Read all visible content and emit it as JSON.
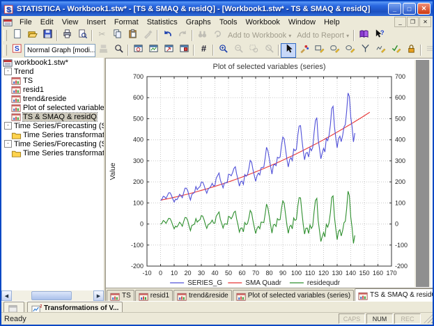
{
  "window": {
    "title": "STATISTICA - Workbook1.stw* - [TS & SMAQ & residQ] - [Workbook1.stw* - TS & SMAQ & residQ]",
    "controls": [
      {
        "name": "minimize-button",
        "glyph": "_"
      },
      {
        "name": "maximize-button",
        "glyph": "□"
      },
      {
        "name": "close-button",
        "glyph": "✕",
        "color": "#cc3810"
      }
    ],
    "mdi_controls": [
      {
        "name": "mdi-minimize-button",
        "glyph": "_"
      },
      {
        "name": "mdi-restore-button",
        "glyph": "❐"
      },
      {
        "name": "mdi-close-button",
        "glyph": "✕"
      }
    ]
  },
  "menubar": {
    "items": [
      "File",
      "Edit",
      "View",
      "Insert",
      "Format",
      "Statistics",
      "Graphs",
      "Tools",
      "Workbook",
      "Window",
      "Help"
    ]
  },
  "toolbar1": {
    "items": [
      {
        "name": "new-button",
        "icon": "new-page-icon"
      },
      {
        "name": "open-button",
        "icon": "open-folder-icon"
      },
      {
        "name": "save-button",
        "icon": "save-icon"
      },
      {
        "sep": true
      },
      {
        "name": "print-button",
        "icon": "printer-icon"
      },
      {
        "name": "print-preview-button",
        "icon": "print-preview-icon"
      },
      {
        "sep": true
      },
      {
        "name": "cut-button",
        "icon": "scissors-icon",
        "disabled": true
      },
      {
        "name": "copy-button",
        "icon": "copy-icon"
      },
      {
        "name": "paste-button",
        "icon": "paste-icon"
      },
      {
        "name": "format-painter-button",
        "icon": "paintbrush-icon",
        "disabled": true
      },
      {
        "sep": true
      },
      {
        "name": "undo-button",
        "icon": "undo-icon"
      },
      {
        "name": "redo-button",
        "icon": "redo-icon",
        "disabled": true
      },
      {
        "sep": true
      },
      {
        "name": "find-button",
        "icon": "binoculars-icon",
        "disabled": true
      },
      {
        "name": "find-next-button",
        "icon": "find-next-icon",
        "disabled": true
      },
      {
        "name": "add-to-workbook-button",
        "label": "Add to Workbook",
        "dropdown": true,
        "disabled": true
      },
      {
        "name": "add-to-report-button",
        "label": "Add to Report",
        "dropdown": true,
        "disabled": true
      },
      {
        "sep": true
      },
      {
        "name": "help-book-button",
        "icon": "book-icon"
      },
      {
        "name": "context-help-button",
        "icon": "help-pointer-icon"
      }
    ]
  },
  "toolbar2": {
    "graph_type_value": "Normal Graph [modi...",
    "items": [
      {
        "name": "statistica-style-button",
        "icon": "s-badge-icon"
      },
      {
        "name": "graph-type-select",
        "select": true
      },
      {
        "name": "apply-style-button",
        "icon": "stamp-icon",
        "disabled": true
      },
      {
        "name": "zoom-custom-button",
        "icon": "magnifier-icon"
      },
      {
        "sep": true
      },
      {
        "name": "fit-window-button",
        "icon": "window-zoom-icon"
      },
      {
        "name": "graph-options-button",
        "icon": "window-graph-icon"
      },
      {
        "name": "graph-layout-button",
        "icon": "window-arrow-icon"
      },
      {
        "name": "graph-data-editor-button",
        "icon": "window-red-icon"
      },
      {
        "sep": true
      },
      {
        "name": "gridlines-button",
        "icon": "grid-icon"
      },
      {
        "sep": true
      },
      {
        "name": "zoom-in-button",
        "icon": "zoom-in-icon"
      },
      {
        "name": "zoom-out-button",
        "icon": "zoom-out-icon",
        "disabled": true
      },
      {
        "name": "zoom-selection-button",
        "icon": "zoom-selection-icon",
        "disabled": true
      },
      {
        "name": "zoom-reset-button",
        "icon": "zoom-reset-icon",
        "disabled": true
      },
      {
        "sep": true
      },
      {
        "name": "pointer-tool-button",
        "icon": "pointer-icon",
        "active": true
      },
      {
        "name": "brushing-tool-button",
        "icon": "brush-color-icon"
      },
      {
        "name": "draw-rect-button",
        "icon": "rect-pencil-icon"
      },
      {
        "name": "draw-rounded-button",
        "icon": "round-pencil-icon"
      },
      {
        "name": "draw-ellipse-button",
        "icon": "ellipse-pencil-icon"
      },
      {
        "name": "point-label-button",
        "icon": "caliper-icon"
      },
      {
        "name": "draw-freeform-button",
        "icon": "free-pencil-icon"
      },
      {
        "name": "draw-custom-button",
        "icon": "check-pencil-icon"
      },
      {
        "name": "lock-tool-button",
        "icon": "lock-icon"
      },
      {
        "sep": true
      },
      {
        "name": "line-style-button",
        "icon": "gray-lines-icon",
        "disabled": true
      },
      {
        "name": "fill-pattern-button",
        "icon": "gray-pattern-icon",
        "disabled": true
      },
      {
        "sep": true
      },
      {
        "name": "bring-forward-button",
        "icon": "bring-forward-icon",
        "disabled": true
      },
      {
        "name": "send-backward-button",
        "icon": "send-backward-icon",
        "disabled": true
      },
      {
        "sep": true
      },
      {
        "name": "font-increase-button",
        "icon": "font-up-icon"
      },
      {
        "name": "font-decrease-button",
        "icon": "font-down-icon"
      }
    ]
  },
  "tree": {
    "items": [
      {
        "label": "workbook1.stw*",
        "icon": "workbook-icon",
        "indent": 0
      },
      {
        "label": "Trend",
        "expander": true,
        "indent": 0
      },
      {
        "label": "TS",
        "icon": "graph-doc-icon",
        "indent": 1
      },
      {
        "label": "resid1",
        "icon": "graph-doc-icon",
        "indent": 1
      },
      {
        "label": "trend&reside",
        "icon": "graph-doc-icon",
        "indent": 1
      },
      {
        "label": "Plot of selected variables (series)",
        "icon": "graph-doc-icon",
        "indent": 1
      },
      {
        "label": "TS & SMAQ & residQ",
        "icon": "graph-doc-icon",
        "indent": 1,
        "selected": true
      },
      {
        "label": "Time Series/Forecasting (Series_Gmy.sta)",
        "expander": true,
        "indent": 0
      },
      {
        "label": "Time Series transformations dialog",
        "icon": "folder-icon",
        "indent": 1
      },
      {
        "label": "Time Series/Forecasting (Series_Gmy.sta)",
        "expander": true,
        "indent": 0
      },
      {
        "label": "Time Series transformations dialog",
        "icon": "folder-icon",
        "indent": 1
      }
    ]
  },
  "tabs": {
    "items": [
      {
        "label": "TS"
      },
      {
        "label": "resid1"
      },
      {
        "label": "trend&reside"
      },
      {
        "label": "Plot of selected variables (series)"
      },
      {
        "label": "TS & SMAQ & residQ",
        "active": true
      }
    ]
  },
  "taskbar": {
    "buttons": [
      {
        "name": "minimized-output-button",
        "icon": "gray-window-icon",
        "label": ""
      },
      {
        "name": "transformations-dialog-button",
        "icon": "task-chart-icon",
        "label": "Transformations of V..."
      }
    ]
  },
  "statusbar": {
    "ready": "Ready",
    "indicators": [
      {
        "label": "CAPS",
        "active": false
      },
      {
        "label": "NUM",
        "active": true
      },
      {
        "label": "REC",
        "active": false
      }
    ]
  },
  "chart_data": {
    "type": "line",
    "title": "Plot of selected variables (series)",
    "xlabel": "",
    "ylabel": "Value",
    "xlim": [
      -10,
      170
    ],
    "ylim": [
      -200,
      700
    ],
    "xstep": 10,
    "ystep": 100,
    "grid": true,
    "legend_position": "bottom",
    "series": [
      {
        "name": "SERIES_G",
        "color": "#5050d8",
        "x_start": 0,
        "values": [
          112,
          118,
          132,
          129,
          121,
          135,
          148,
          148,
          136,
          119,
          104,
          118,
          115,
          126,
          141,
          135,
          125,
          149,
          170,
          170,
          158,
          133,
          114,
          140,
          145,
          150,
          178,
          163,
          172,
          178,
          199,
          199,
          184,
          162,
          146,
          166,
          171,
          180,
          193,
          181,
          183,
          218,
          230,
          242,
          209,
          191,
          172,
          194,
          196,
          196,
          236,
          235,
          229,
          243,
          264,
          272,
          237,
          211,
          180,
          201,
          204,
          188,
          235,
          227,
          234,
          264,
          302,
          293,
          259,
          229,
          203,
          229,
          242,
          233,
          267,
          269,
          270,
          315,
          364,
          347,
          312,
          274,
          237,
          278,
          284,
          277,
          317,
          313,
          318,
          374,
          413,
          405,
          355,
          306,
          271,
          306,
          315,
          301,
          356,
          348,
          355,
          422,
          465,
          467,
          404,
          347,
          305,
          336,
          340,
          318,
          362,
          348,
          363,
          435,
          491,
          505,
          404,
          359,
          310,
          337,
          360,
          342,
          406,
          396,
          420,
          472,
          548,
          559,
          463,
          407,
          362,
          405,
          417,
          391,
          419,
          461,
          472,
          535,
          622,
          606,
          508,
          461,
          390,
          432
        ]
      },
      {
        "name": "SMA Quadr",
        "color": "#e83535",
        "fit": "quadratic",
        "coefficients": {
          "a": 113,
          "b": 1.269,
          "c": 0.009375
        },
        "x_range": [
          0,
          155
        ]
      },
      {
        "name": "residequdr",
        "color": "#2e8f2e",
        "derived": "SERIES_G minus SMA Quadr",
        "x_start": 0
      }
    ]
  }
}
